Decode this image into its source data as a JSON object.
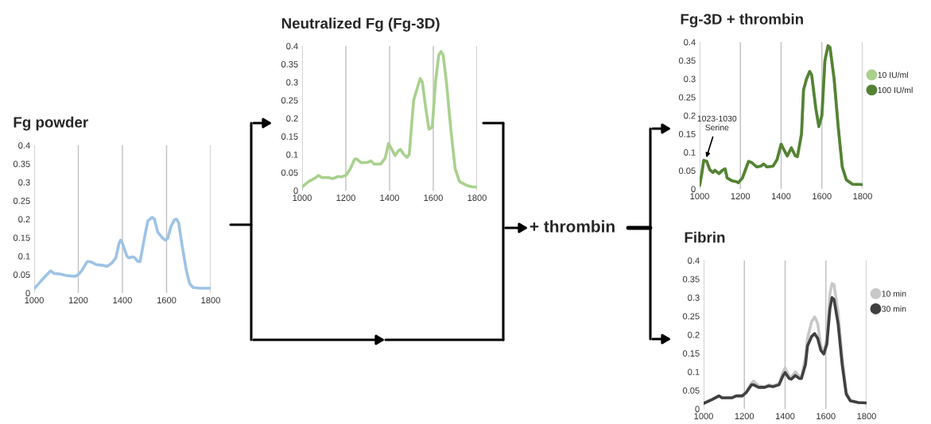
{
  "chart_data": [
    {
      "type": "line",
      "title": "Fg powder",
      "xlim": [
        1000,
        1800
      ],
      "xticks": [
        1000,
        1200,
        1400,
        1600,
        1800
      ],
      "ylim": [
        0,
        0.4
      ],
      "yticks": [
        0,
        0.05,
        0.1,
        0.15,
        0.2,
        0.25,
        0.3,
        0.35,
        0.4
      ],
      "grid": "x",
      "legend": false,
      "series": [
        {
          "color": "#9dc3e6",
          "x": [
            1000,
            1020,
            1050,
            1075,
            1090,
            1120,
            1150,
            1185,
            1200,
            1215,
            1240,
            1255,
            1280,
            1310,
            1330,
            1350,
            1370,
            1385,
            1392,
            1400,
            1420,
            1430,
            1445,
            1455,
            1470,
            1480,
            1500,
            1515,
            1525,
            1535,
            1545,
            1560,
            1580,
            1595,
            1605,
            1620,
            1635,
            1645,
            1655,
            1670,
            1690,
            1705,
            1720,
            1750,
            1800
          ],
          "values": [
            0.012,
            0.025,
            0.045,
            0.06,
            0.053,
            0.051,
            0.047,
            0.045,
            0.05,
            0.06,
            0.085,
            0.085,
            0.077,
            0.075,
            0.072,
            0.08,
            0.095,
            0.135,
            0.143,
            0.135,
            0.1,
            0.095,
            0.098,
            0.096,
            0.085,
            0.085,
            0.15,
            0.195,
            0.2,
            0.205,
            0.2,
            0.165,
            0.15,
            0.143,
            0.148,
            0.18,
            0.198,
            0.2,
            0.19,
            0.13,
            0.06,
            0.025,
            0.015,
            0.013,
            0.013
          ]
        }
      ]
    },
    {
      "type": "line",
      "title": "Neutralized Fg (Fg-3D)",
      "annotations": [
        "+ thrombin"
      ],
      "xlim": [
        1000,
        1800
      ],
      "xticks": [
        1000,
        1200,
        1400,
        1600,
        1800
      ],
      "ylim": [
        0,
        0.4
      ],
      "yticks": [
        0,
        0.05,
        0.1,
        0.15,
        0.2,
        0.25,
        0.3,
        0.35,
        0.4
      ],
      "grid": "x",
      "legend": false,
      "series": [
        {
          "color": "#a9d18e",
          "x": [
            1000,
            1030,
            1060,
            1075,
            1090,
            1120,
            1140,
            1165,
            1180,
            1200,
            1220,
            1240,
            1250,
            1270,
            1300,
            1315,
            1330,
            1360,
            1380,
            1395,
            1405,
            1425,
            1440,
            1450,
            1465,
            1480,
            1490,
            1510,
            1525,
            1540,
            1550,
            1565,
            1580,
            1595,
            1610,
            1625,
            1635,
            1645,
            1660,
            1680,
            1700,
            1720,
            1750,
            1780,
            1800
          ],
          "values": [
            0.01,
            0.025,
            0.035,
            0.042,
            0.036,
            0.036,
            0.033,
            0.039,
            0.038,
            0.042,
            0.06,
            0.087,
            0.087,
            0.077,
            0.078,
            0.082,
            0.073,
            0.074,
            0.09,
            0.13,
            0.12,
            0.097,
            0.11,
            0.114,
            0.1,
            0.092,
            0.1,
            0.25,
            0.28,
            0.31,
            0.3,
            0.23,
            0.17,
            0.175,
            0.3,
            0.375,
            0.385,
            0.375,
            0.3,
            0.17,
            0.06,
            0.025,
            0.015,
            0.01,
            0.01
          ]
        }
      ]
    },
    {
      "type": "line",
      "title": "Fg-3D + thrombin",
      "annotations": [
        {
          "text": "1023-1030\nSerine",
          "x": 1030,
          "y": 0.08
        }
      ],
      "xlim": [
        1000,
        1800
      ],
      "xticks": [
        1000,
        1200,
        1400,
        1600,
        1800
      ],
      "ylim": [
        0,
        0.4
      ],
      "yticks": [
        0,
        0.05,
        0.1,
        0.15,
        0.2,
        0.25,
        0.3,
        0.35,
        0.4
      ],
      "grid": "x",
      "legend": "right",
      "series": [
        {
          "name": "10 IU/ml",
          "color": "#a9d18e",
          "x": [
            1000,
            1010,
            1020,
            1035,
            1050,
            1065,
            1075,
            1095,
            1110,
            1125,
            1135,
            1160,
            1180,
            1190,
            1210,
            1230,
            1240,
            1255,
            1280,
            1300,
            1315,
            1330,
            1360,
            1380,
            1400,
            1420,
            1430,
            1450,
            1470,
            1480,
            1500,
            1510,
            1525,
            1540,
            1550,
            1570,
            1585,
            1600,
            1615,
            1630,
            1640,
            1660,
            1680,
            1700,
            1720,
            1750,
            1800
          ],
          "values": [
            0.01,
            0.04,
            0.078,
            0.075,
            0.052,
            0.045,
            0.051,
            0.042,
            0.05,
            0.055,
            0.03,
            0.022,
            0.02,
            0.017,
            0.03,
            0.06,
            0.075,
            0.072,
            0.06,
            0.062,
            0.068,
            0.06,
            0.062,
            0.08,
            0.122,
            0.1,
            0.09,
            0.112,
            0.09,
            0.088,
            0.15,
            0.27,
            0.3,
            0.32,
            0.31,
            0.22,
            0.17,
            0.2,
            0.35,
            0.39,
            0.385,
            0.3,
            0.17,
            0.06,
            0.025,
            0.013,
            0.012
          ]
        },
        {
          "name": "100 IU/ml",
          "color": "#548235",
          "x": [
            1000,
            1010,
            1020,
            1035,
            1050,
            1065,
            1075,
            1095,
            1110,
            1125,
            1135,
            1160,
            1180,
            1190,
            1210,
            1230,
            1240,
            1255,
            1280,
            1300,
            1315,
            1330,
            1360,
            1380,
            1400,
            1420,
            1430,
            1450,
            1470,
            1480,
            1500,
            1510,
            1525,
            1540,
            1550,
            1570,
            1585,
            1600,
            1615,
            1630,
            1640,
            1660,
            1680,
            1700,
            1720,
            1750,
            1800
          ],
          "values": [
            0.01,
            0.04,
            0.078,
            0.075,
            0.052,
            0.045,
            0.051,
            0.042,
            0.05,
            0.055,
            0.03,
            0.022,
            0.02,
            0.017,
            0.03,
            0.06,
            0.075,
            0.072,
            0.06,
            0.062,
            0.068,
            0.06,
            0.062,
            0.08,
            0.122,
            0.1,
            0.09,
            0.112,
            0.09,
            0.088,
            0.15,
            0.27,
            0.3,
            0.32,
            0.31,
            0.22,
            0.17,
            0.2,
            0.35,
            0.39,
            0.385,
            0.3,
            0.17,
            0.06,
            0.025,
            0.013,
            0.012
          ]
        }
      ]
    },
    {
      "type": "line",
      "title": "Fibrin",
      "xlim": [
        1000,
        1800
      ],
      "xticks": [
        1000,
        1200,
        1400,
        1600,
        1800
      ],
      "ylim": [
        0,
        0.4
      ],
      "yticks": [
        0,
        0.05,
        0.1,
        0.15,
        0.2,
        0.25,
        0.3,
        0.35,
        0.4
      ],
      "grid": "x",
      "legend": "right",
      "series": [
        {
          "name": "10 min",
          "color": "#c8c8c8",
          "x": [
            1000,
            1040,
            1075,
            1090,
            1140,
            1160,
            1190,
            1210,
            1235,
            1245,
            1270,
            1300,
            1320,
            1340,
            1370,
            1390,
            1400,
            1420,
            1430,
            1450,
            1470,
            1480,
            1500,
            1510,
            1530,
            1545,
            1560,
            1575,
            1590,
            1605,
            1620,
            1630,
            1640,
            1660,
            1680,
            1700,
            1720,
            1760,
            1800
          ],
          "values": [
            0.015,
            0.025,
            0.035,
            0.03,
            0.03,
            0.035,
            0.035,
            0.045,
            0.07,
            0.075,
            0.062,
            0.06,
            0.065,
            0.062,
            0.068,
            0.1,
            0.11,
            0.088,
            0.085,
            0.1,
            0.088,
            0.085,
            0.14,
            0.19,
            0.235,
            0.248,
            0.23,
            0.17,
            0.152,
            0.19,
            0.31,
            0.338,
            0.335,
            0.26,
            0.14,
            0.045,
            0.022,
            0.017,
            0.016
          ]
        },
        {
          "name": "30 min",
          "color": "#404040",
          "x": [
            1000,
            1040,
            1075,
            1090,
            1140,
            1160,
            1190,
            1210,
            1235,
            1245,
            1270,
            1300,
            1320,
            1340,
            1370,
            1390,
            1400,
            1420,
            1430,
            1450,
            1470,
            1480,
            1500,
            1510,
            1530,
            1545,
            1560,
            1575,
            1590,
            1605,
            1620,
            1630,
            1640,
            1660,
            1680,
            1700,
            1720,
            1760,
            1800
          ],
          "values": [
            0.015,
            0.025,
            0.035,
            0.03,
            0.03,
            0.035,
            0.035,
            0.045,
            0.065,
            0.065,
            0.058,
            0.058,
            0.062,
            0.06,
            0.065,
            0.09,
            0.098,
            0.082,
            0.08,
            0.09,
            0.082,
            0.082,
            0.12,
            0.17,
            0.195,
            0.203,
            0.19,
            0.158,
            0.148,
            0.175,
            0.27,
            0.3,
            0.295,
            0.23,
            0.12,
            0.04,
            0.022,
            0.017,
            0.016
          ]
        }
      ]
    }
  ]
}
